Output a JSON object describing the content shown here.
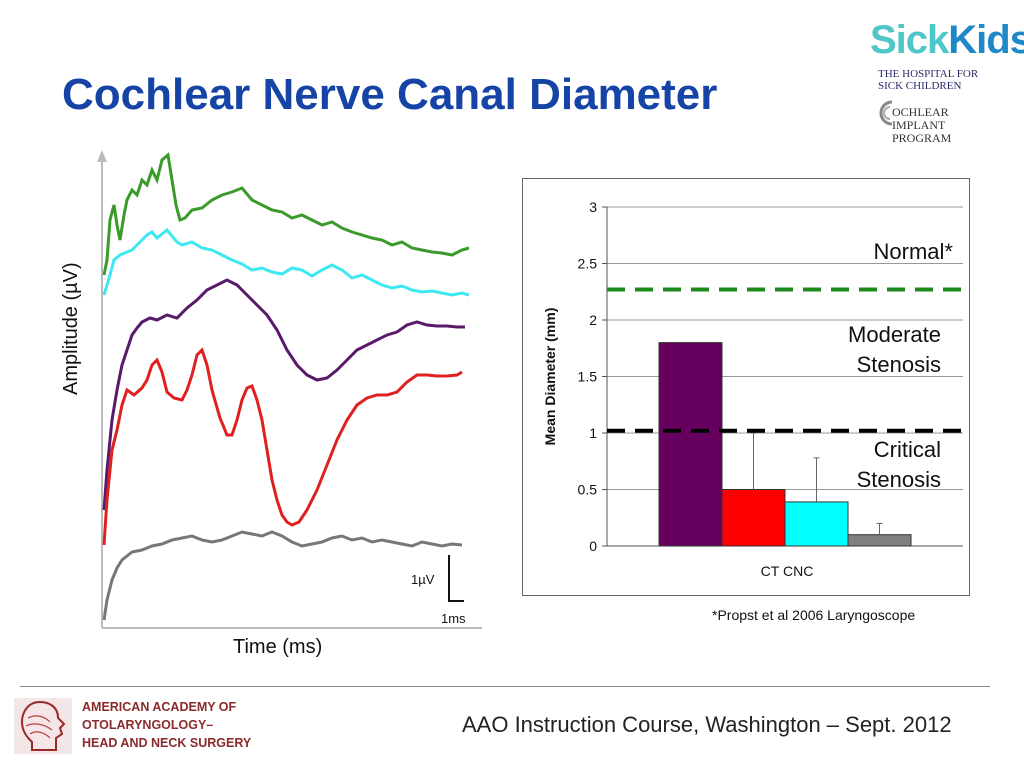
{
  "slide": {
    "title": "Cochlear Nerve Canal Diameter",
    "citation": "*Propst et al 2006 Laryngoscope",
    "footer_text": "AAO Instruction Course, Washington – Sept. 2012"
  },
  "logos": {
    "sickkids": {
      "wordmark_a": "Sick",
      "wordmark_b": "Kids",
      "line1": "THE HOSPITAL FOR",
      "line2": "SICK CHILDREN",
      "program1": "OCHLEAR",
      "program2": "IMPLANT",
      "program3": "PROGRAM"
    },
    "aao": {
      "line1": "AMERICAN ACADEMY OF",
      "line2": "OTOLARYNGOLOGY–",
      "line3": "HEAD AND NECK SURGERY"
    }
  },
  "abr_panel": {
    "ylabel": "Amplitude (µV)",
    "xlabel": "Time (ms)",
    "scale_amplitude": "1µV",
    "scale_time": "1ms",
    "colors": [
      "#3a9a2a",
      "#3ee8f0",
      "#5a1a6a",
      "#e02020",
      "#777777"
    ]
  },
  "chart_data": {
    "type": "bar",
    "categories": [
      "CT CNC"
    ],
    "ylabel": "Mean Diameter (mm)",
    "xlabel": "",
    "ylim": [
      0,
      3
    ],
    "yticks": [
      "0",
      "0.5",
      "1",
      "1.5",
      "2",
      "2.5",
      "3"
    ],
    "grid": true,
    "series": [
      {
        "color": "#66005e",
        "values": [
          1.8
        ],
        "error": null
      },
      {
        "color": "#ff0000",
        "values": [
          0.5
        ],
        "error": 1.0
      },
      {
        "color": "#00ffff",
        "values": [
          0.39
        ],
        "error": 0.78
      },
      {
        "color": "#808080",
        "values": [
          0.1
        ],
        "error": 0.2
      }
    ],
    "reference_lines": [
      {
        "value": 2.27,
        "style": "dashed",
        "color": "#1a8a1a",
        "label": "Normal*"
      },
      {
        "value": 1.02,
        "style": "dashed",
        "color": "#000000",
        "label": ""
      }
    ],
    "annotations": [
      {
        "text": "Normal*"
      },
      {
        "text": "Moderate"
      },
      {
        "text": "Stenosis"
      },
      {
        "text": "Critical"
      },
      {
        "text": "Stenosis"
      }
    ]
  }
}
